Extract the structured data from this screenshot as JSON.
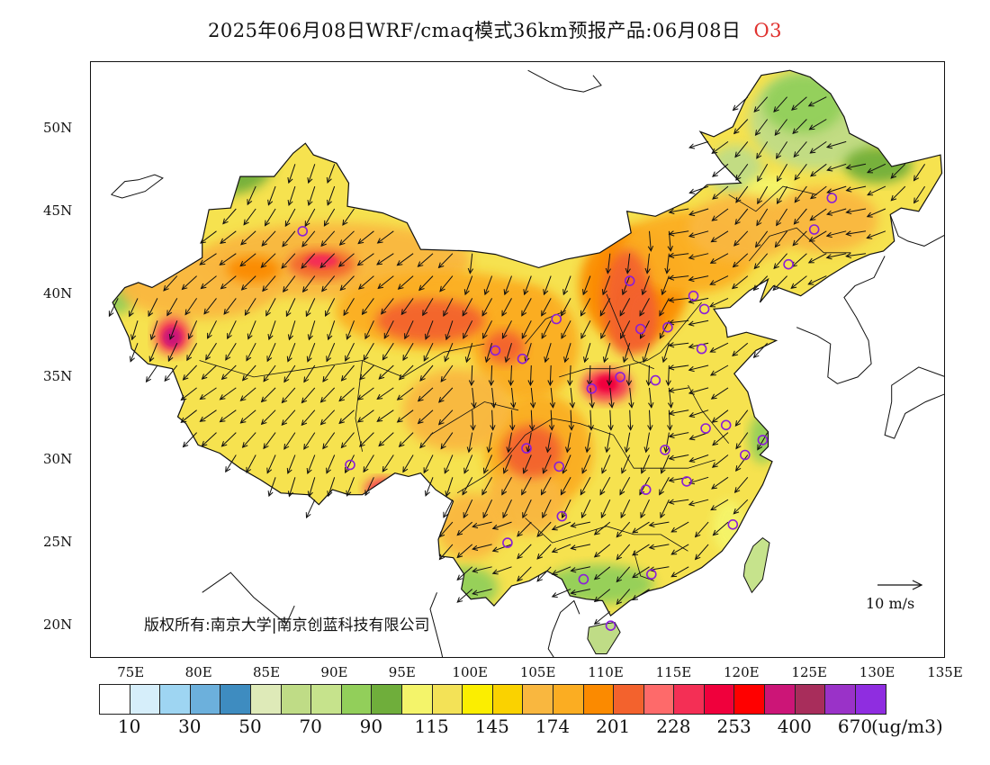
{
  "title": {
    "main": "2025年06月08日WRF/cmaq模式36km预报产品:06月08日",
    "species": "O3",
    "species_color": "#e0322f"
  },
  "copyright": "版权所有:南京大学|南京创蓝科技有限公司",
  "lat_labels": [
    "50N",
    "45N",
    "40N",
    "35N",
    "30N",
    "25N",
    "20N"
  ],
  "lon_labels": [
    "75E",
    "80E",
    "85E",
    "90E",
    "95E",
    "100E",
    "105E",
    "110E",
    "115E",
    "120E",
    "125E",
    "130E",
    "135E"
  ],
  "wind_reference": {
    "label": "10 m/s"
  },
  "colorbar": {
    "unit": "(ug/m3)",
    "labels": [
      "10",
      "30",
      "50",
      "70",
      "90",
      "115",
      "145",
      "174",
      "201",
      "228",
      "253",
      "400",
      "670"
    ],
    "colors": [
      "#ffffff",
      "#d6eefa",
      "#9ed5f2",
      "#6cb0dc",
      "#3e8cc0",
      "#deeab8",
      "#bfdc86",
      "#c6e38c",
      "#92cf5a",
      "#6fae3b",
      "#f4f46a",
      "#f3e257",
      "#fbee00",
      "#fad200",
      "#f9b73f",
      "#fbad22",
      "#fb8a00",
      "#f3622d",
      "#fe6a6a",
      "#f42f55",
      "#f0003c",
      "#ff0000",
      "#cc1577",
      "#a82d5b",
      "#9a32c8",
      "#8f2de0"
    ]
  },
  "map": {
    "extent": {
      "lon_min": 72.0,
      "lon_max": 135.0,
      "lat_min": 18.0,
      "lat_max": 54.0
    },
    "monitoring_station_color": "#8a1ed8",
    "monitoring_stations": [
      {
        "lon": 87.6,
        "lat": 43.8
      },
      {
        "lon": 101.8,
        "lat": 36.6
      },
      {
        "lon": 103.8,
        "lat": 36.1
      },
      {
        "lon": 106.3,
        "lat": 38.5
      },
      {
        "lon": 111.7,
        "lat": 40.8
      },
      {
        "lon": 112.5,
        "lat": 37.9
      },
      {
        "lon": 113.6,
        "lat": 34.8
      },
      {
        "lon": 108.9,
        "lat": 34.3
      },
      {
        "lon": 114.5,
        "lat": 38.0
      },
      {
        "lon": 116.4,
        "lat": 39.9
      },
      {
        "lon": 117.2,
        "lat": 39.1
      },
      {
        "lon": 117.0,
        "lat": 36.7
      },
      {
        "lon": 123.4,
        "lat": 41.8
      },
      {
        "lon": 125.3,
        "lat": 43.9
      },
      {
        "lon": 126.6,
        "lat": 45.8
      },
      {
        "lon": 104.1,
        "lat": 30.7
      },
      {
        "lon": 106.5,
        "lat": 29.6
      },
      {
        "lon": 106.7,
        "lat": 26.6
      },
      {
        "lon": 102.7,
        "lat": 25.0
      },
      {
        "lon": 108.3,
        "lat": 22.8
      },
      {
        "lon": 113.3,
        "lat": 23.1
      },
      {
        "lon": 110.3,
        "lat": 20.0
      },
      {
        "lon": 112.9,
        "lat": 28.2
      },
      {
        "lon": 114.3,
        "lat": 30.6
      },
      {
        "lon": 115.9,
        "lat": 28.7
      },
      {
        "lon": 117.3,
        "lat": 31.9
      },
      {
        "lon": 118.8,
        "lat": 32.1
      },
      {
        "lon": 120.2,
        "lat": 30.3
      },
      {
        "lon": 121.5,
        "lat": 31.2
      },
      {
        "lon": 119.3,
        "lat": 26.1
      },
      {
        "lon": 91.1,
        "lat": 29.7
      },
      {
        "lon": 111.0,
        "lat": 35.0
      }
    ]
  }
}
